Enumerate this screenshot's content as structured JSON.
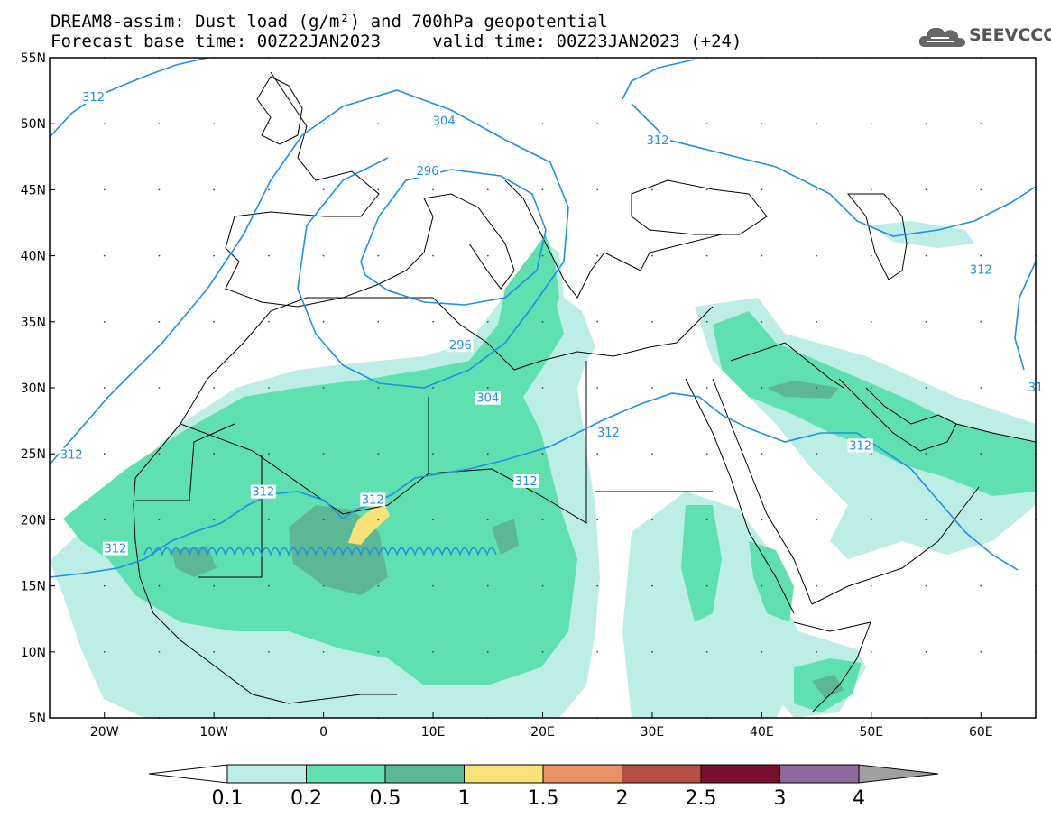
{
  "title": {
    "line1": "DREAM8-assim: Dust load (g/m²) and 700hPa geopotential",
    "line2": "Forecast base time: 00Z22JAN2023     valid time: 00Z23JAN2023 (+24)"
  },
  "logo": {
    "text": "SEEVCCC",
    "icon": "cloud-icon"
  },
  "map": {
    "lon_range": [
      -25,
      65
    ],
    "lat_range": [
      5,
      55
    ],
    "lat_ticks": [
      {
        "value": 55,
        "label": "55N"
      },
      {
        "value": 50,
        "label": "50N"
      },
      {
        "value": 45,
        "label": "45N"
      },
      {
        "value": 40,
        "label": "40N"
      },
      {
        "value": 35,
        "label": "35N"
      },
      {
        "value": 30,
        "label": "30N"
      },
      {
        "value": 25,
        "label": "25N"
      },
      {
        "value": 20,
        "label": "20N"
      },
      {
        "value": 15,
        "label": "15N"
      },
      {
        "value": 10,
        "label": "10N"
      },
      {
        "value": 5,
        "label": "5N"
      }
    ],
    "lon_ticks": [
      {
        "value": -20,
        "label": "20W"
      },
      {
        "value": -10,
        "label": "10W"
      },
      {
        "value": 0,
        "label": "0"
      },
      {
        "value": 10,
        "label": "10E"
      },
      {
        "value": 20,
        "label": "20E"
      },
      {
        "value": 30,
        "label": "30E"
      },
      {
        "value": 40,
        "label": "40E"
      },
      {
        "value": 50,
        "label": "50E"
      },
      {
        "value": 60,
        "label": "60E"
      }
    ],
    "grid": "dotted",
    "contour_labels": [
      {
        "text": "312",
        "lon": -21,
        "lat": 52
      },
      {
        "text": "304",
        "lon": 11,
        "lat": 50.2
      },
      {
        "text": "312",
        "lon": 30.5,
        "lat": 48.7
      },
      {
        "text": "296",
        "lon": 9.5,
        "lat": 46.4
      },
      {
        "text": "296",
        "lon": 12.5,
        "lat": 33.2
      },
      {
        "text": "304",
        "lon": 15,
        "lat": 29.2
      },
      {
        "text": "312",
        "lon": 26,
        "lat": 26.6
      },
      {
        "text": "312",
        "lon": 49,
        "lat": 25.6
      },
      {
        "text": "312",
        "lon": 60,
        "lat": 38.9
      },
      {
        "text": "312",
        "lon": -23,
        "lat": 24.9
      },
      {
        "text": "312",
        "lon": -19,
        "lat": 17.8
      },
      {
        "text": "312",
        "lon": -5.5,
        "lat": 22.1
      },
      {
        "text": "312",
        "lon": 4.5,
        "lat": 21.5
      },
      {
        "text": "312",
        "lon": 18.5,
        "lat": 22.9
      },
      {
        "text": "31",
        "lon": 65,
        "lat": 30
      }
    ]
  },
  "colorbar": {
    "levels": [
      "0.1",
      "0.2",
      "0.5",
      "1",
      "1.5",
      "2",
      "2.5",
      "3",
      "4"
    ],
    "colors": [
      "#bdeee6",
      "#5fe0b0",
      "#5cb894",
      "#f7e27a",
      "#ea9065",
      "#b64f43",
      "#7a0f2e",
      "#8e6a9e",
      "#a0a0a0"
    ]
  }
}
